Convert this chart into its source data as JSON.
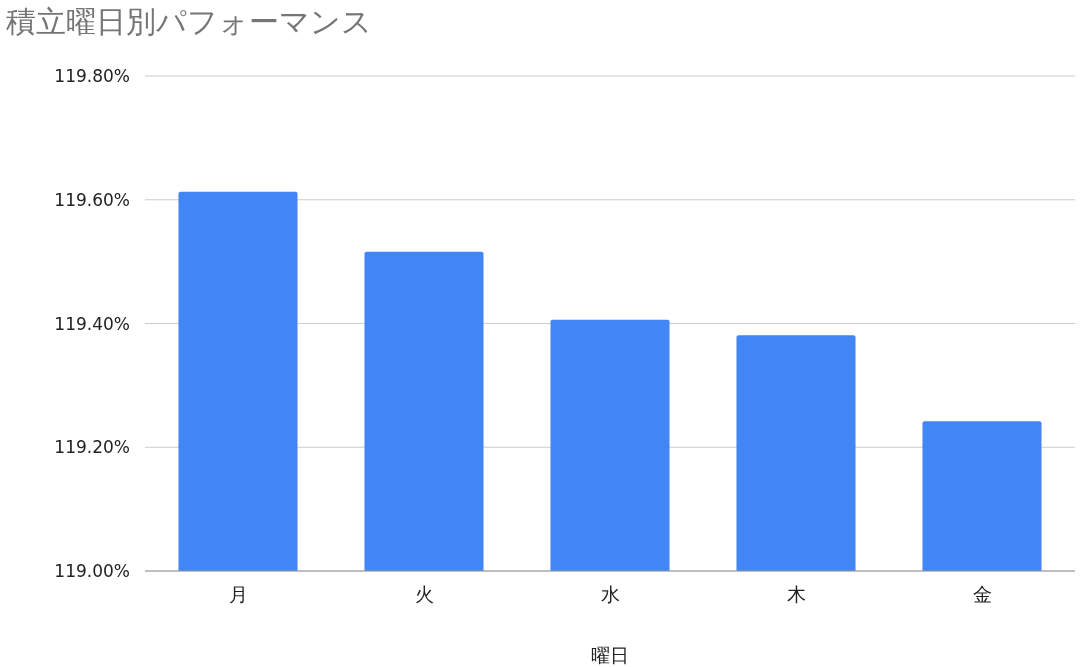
{
  "chart_data": {
    "type": "bar",
    "title": "積立曜日別パフォーマンス",
    "xlabel": "曜日",
    "categories": [
      "月",
      "火",
      "水",
      "木",
      "金"
    ],
    "values": [
      119.613,
      119.516,
      119.406,
      119.381,
      119.242
    ],
    "color": "#4285f4",
    "ylim": [
      119.0,
      119.8
    ],
    "yticks": [
      {
        "value": 119.0,
        "label": "119.00%"
      },
      {
        "value": 119.2,
        "label": "119.20%"
      },
      {
        "value": 119.4,
        "label": "119.40%"
      },
      {
        "value": 119.6,
        "label": "119.60%"
      },
      {
        "value": 119.8,
        "label": "119.80%"
      }
    ],
    "grid": "y"
  }
}
